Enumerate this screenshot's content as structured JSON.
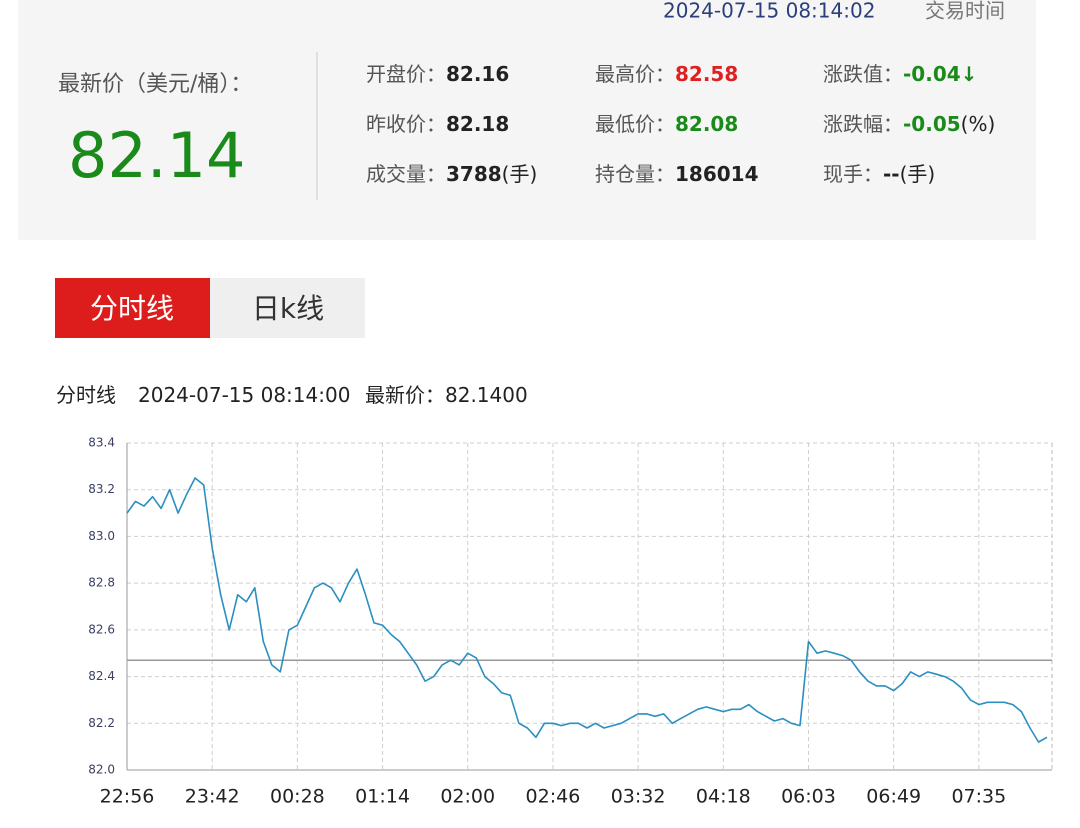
{
  "header": {
    "timestamp": "2024-07-15 08:14:02",
    "trade_time": "交易时间",
    "price_label": "最新价（美元/桶）：",
    "price": "82.14",
    "price_color": "#1a8a1a"
  },
  "quote": [
    {
      "label": "开盘价：",
      "value": "82.16",
      "color": "#222222"
    },
    {
      "label": "最高价：",
      "value": "82.58",
      "color": "#e02020"
    },
    {
      "label": "涨跌值：",
      "value": "-0.04↓",
      "color": "#1a8a1a"
    },
    {
      "label": "昨收价：",
      "value": "82.18",
      "color": "#222222"
    },
    {
      "label": "最低价：",
      "value": "82.08",
      "color": "#1a8a1a"
    },
    {
      "label": "涨跌幅：",
      "value": "-0.05",
      "unit": "(%)",
      "color": "#1a8a1a"
    },
    {
      "label": "成交量：",
      "value": "3788",
      "unit": "(手)",
      "color": "#222222"
    },
    {
      "label": "持仓量：",
      "value": "186014",
      "color": "#222222"
    },
    {
      "label": "现手：",
      "value": "--",
      "unit": "(手)",
      "color": "#222222"
    }
  ],
  "tabs": [
    "分时线",
    "日k线"
  ],
  "caption": {
    "title": "分时线",
    "time": "2024-07-15 08:14:00",
    "label": "最新价：",
    "value": "82.1400"
  },
  "chart_data": {
    "type": "line",
    "categories": [
      "22:56",
      null,
      null,
      null,
      null,
      null,
      null,
      null,
      null,
      null,
      "23:42",
      null,
      null,
      null,
      null,
      null,
      null,
      null,
      null,
      null,
      "00:28",
      null,
      null,
      null,
      null,
      null,
      null,
      null,
      null,
      null,
      "01:14",
      null,
      null,
      null,
      null,
      null,
      null,
      null,
      null,
      null,
      "02:00",
      null,
      null,
      null,
      null,
      null,
      null,
      null,
      null,
      null,
      "02:46",
      null,
      null,
      null,
      null,
      null,
      null,
      null,
      null,
      null,
      "03:32",
      null,
      null,
      null,
      null,
      null,
      null,
      null,
      null,
      null,
      "04:18",
      null,
      null,
      null,
      null,
      null,
      null,
      null,
      null,
      null,
      "06:03",
      null,
      null,
      null,
      null,
      null,
      null,
      null,
      null,
      null,
      "06:49",
      null,
      null,
      null,
      null,
      null,
      null,
      null,
      null,
      null,
      "07:35",
      null,
      null,
      null,
      null,
      null,
      null,
      null,
      null
    ],
    "series": [
      {
        "color": "#2a8fc1",
        "values": [
          83.1,
          83.15,
          83.13,
          83.17,
          83.12,
          83.2,
          83.1,
          83.18,
          83.25,
          83.22,
          82.95,
          82.75,
          82.6,
          82.75,
          82.72,
          82.78,
          82.55,
          82.45,
          82.42,
          82.6,
          82.62,
          82.7,
          82.78,
          82.8,
          82.78,
          82.72,
          82.8,
          82.86,
          82.75,
          82.63,
          82.62,
          82.58,
          82.55,
          82.5,
          82.45,
          82.38,
          82.4,
          82.45,
          82.47,
          82.45,
          82.5,
          82.48,
          82.4,
          82.37,
          82.33,
          82.32,
          82.2,
          82.18,
          82.14,
          82.2,
          82.2,
          82.19,
          82.2,
          82.2,
          82.18,
          82.2,
          82.18,
          82.19,
          82.2,
          82.22,
          82.24,
          82.24,
          82.23,
          82.24,
          82.2,
          82.22,
          82.24,
          82.26,
          82.27,
          82.26,
          82.25,
          82.26,
          82.26,
          82.28,
          82.25,
          82.23,
          82.21,
          82.22,
          82.2,
          82.19,
          82.55,
          82.5,
          82.51,
          82.5,
          82.49,
          82.47,
          82.42,
          82.38,
          82.36,
          82.36,
          82.34,
          82.37,
          82.42,
          82.4,
          82.42,
          82.41,
          82.4,
          82.38,
          82.35,
          82.3,
          82.28,
          82.29,
          82.29,
          82.29,
          82.28,
          82.25,
          82.18,
          82.12,
          82.14
        ]
      }
    ],
    "reference_line": 82.47,
    "ylim": [
      82,
      83.4
    ],
    "yticks": [
      {
        "value": 82,
        "label": "82.0"
      },
      82.2,
      82.4,
      82.6,
      82.8,
      {
        "value": 83,
        "label": "83.0"
      },
      83.2,
      83.4
    ],
    "grid": true
  }
}
